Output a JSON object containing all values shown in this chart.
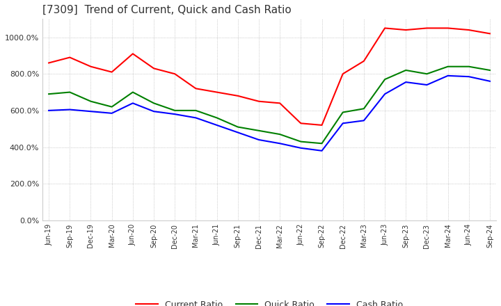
{
  "title": "[7309]  Trend of Current, Quick and Cash Ratio",
  "title_fontsize": 11,
  "background_color": "#ffffff",
  "plot_bg_color": "#ffffff",
  "grid_color": "#aaaaaa",
  "x_labels": [
    "Jun-19",
    "Sep-19",
    "Dec-19",
    "Mar-20",
    "Jun-20",
    "Sep-20",
    "Dec-20",
    "Mar-21",
    "Jun-21",
    "Sep-21",
    "Dec-21",
    "Mar-22",
    "Jun-22",
    "Sep-22",
    "Dec-22",
    "Mar-23",
    "Jun-23",
    "Sep-23",
    "Dec-23",
    "Mar-24",
    "Jun-24",
    "Sep-24"
  ],
  "current_ratio": [
    860,
    890,
    840,
    810,
    910,
    830,
    800,
    720,
    700,
    680,
    650,
    640,
    530,
    520,
    800,
    870,
    1050,
    1040,
    1050,
    1050,
    1040,
    1020
  ],
  "quick_ratio": [
    690,
    700,
    650,
    620,
    700,
    640,
    600,
    600,
    560,
    510,
    490,
    470,
    430,
    420,
    590,
    610,
    770,
    820,
    800,
    840,
    840,
    820
  ],
  "cash_ratio": [
    600,
    605,
    595,
    585,
    640,
    595,
    580,
    560,
    520,
    480,
    440,
    420,
    395,
    380,
    530,
    545,
    690,
    755,
    740,
    790,
    785,
    760
  ],
  "current_color": "#ff0000",
  "quick_color": "#008000",
  "cash_color": "#0000ff",
  "ylim": [
    0,
    1100
  ],
  "yticks": [
    0,
    200,
    400,
    600,
    800,
    1000
  ],
  "legend_labels": [
    "Current Ratio",
    "Quick Ratio",
    "Cash Ratio"
  ]
}
